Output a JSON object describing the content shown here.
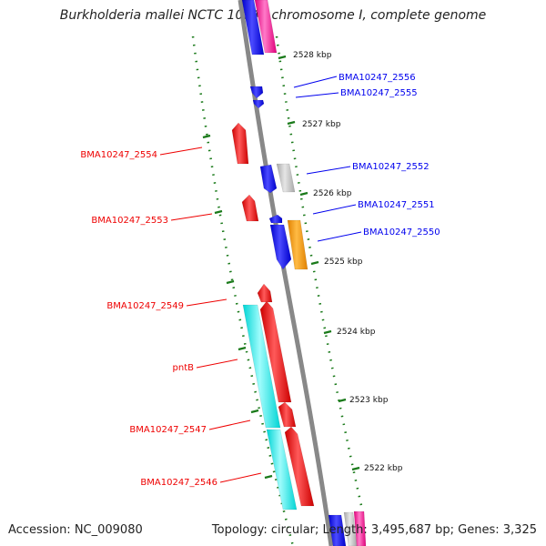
{
  "title": "Burkholderia mallei NCTC 10247 chromosome I, complete genome",
  "footer": {
    "accession": "Accession: NC_009080",
    "topology": "Topology: circular; Length: 3,495,687 bp; Genes: 3,325"
  },
  "colors": {
    "backbone": "#888888",
    "tick": "#1a7a1a",
    "forward_strand": "#0000ee",
    "reverse_strand": "#ee0000",
    "pink": "#ff2aa0",
    "grey": "#c4c4c4",
    "orange": "#ff9900",
    "cyan": "#00eeee"
  },
  "scale_labels": [
    {
      "text": "2528 kbp"
    },
    {
      "text": "2527 kbp"
    },
    {
      "text": "2526 kbp"
    },
    {
      "text": "2525 kbp"
    },
    {
      "text": "2524 kbp"
    },
    {
      "text": "2523 kbp"
    },
    {
      "text": "2522 kbp"
    }
  ],
  "gene_labels": [
    {
      "text": "BMA10247_2556",
      "strand": "forward"
    },
    {
      "text": "BMA10247_2555",
      "strand": "forward"
    },
    {
      "text": "BMA10247_2552",
      "strand": "forward"
    },
    {
      "text": "BMA10247_2551",
      "strand": "forward"
    },
    {
      "text": "BMA10247_2550",
      "strand": "forward"
    },
    {
      "text": "BMA10247_2554",
      "strand": "reverse"
    },
    {
      "text": "BMA10247_2553",
      "strand": "reverse"
    },
    {
      "text": "BMA10247_2549",
      "strand": "reverse"
    },
    {
      "text": "pntB",
      "strand": "reverse"
    },
    {
      "text": "BMA10247_2547",
      "strand": "reverse"
    },
    {
      "text": "BMA10247_2546",
      "strand": "reverse"
    }
  ]
}
